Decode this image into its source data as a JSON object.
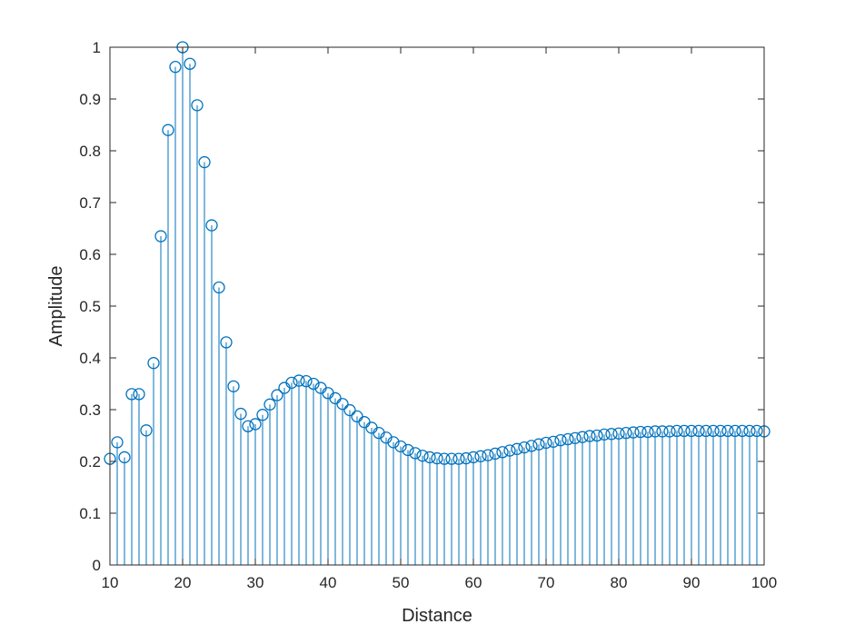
{
  "chart_data": {
    "type": "stem",
    "xlabel": "Distance",
    "ylabel": "Amplitude",
    "xlim": [
      10,
      100
    ],
    "ylim": [
      0,
      1
    ],
    "xticks": [
      "10",
      "20",
      "30",
      "40",
      "50",
      "60",
      "70",
      "80",
      "90",
      "100"
    ],
    "yticks": [
      "0",
      "0.1",
      "0.2",
      "0.3",
      "0.4",
      "0.5",
      "0.6",
      "0.7",
      "0.8",
      "0.9",
      "1"
    ],
    "grid": false,
    "color": "#0072BD",
    "x": [
      10,
      11,
      12,
      13,
      14,
      15,
      16,
      17,
      18,
      19,
      20,
      21,
      22,
      23,
      24,
      25,
      26,
      27,
      28,
      29,
      30,
      31,
      32,
      33,
      34,
      35,
      36,
      37,
      38,
      39,
      40,
      41,
      42,
      43,
      44,
      45,
      46,
      47,
      48,
      49,
      50,
      51,
      52,
      53,
      54,
      55,
      56,
      57,
      58,
      59,
      60,
      61,
      62,
      63,
      64,
      65,
      66,
      67,
      68,
      69,
      70,
      71,
      72,
      73,
      74,
      75,
      76,
      77,
      78,
      79,
      80,
      81,
      82,
      83,
      84,
      85,
      86,
      87,
      88,
      89,
      90,
      91,
      92,
      93,
      94,
      95,
      96,
      97,
      98,
      99,
      100
    ],
    "y": [
      0.205,
      0.237,
      0.208,
      0.33,
      0.33,
      0.26,
      0.39,
      0.635,
      0.84,
      0.962,
      1.0,
      0.968,
      0.888,
      0.778,
      0.656,
      0.536,
      0.43,
      0.345,
      0.292,
      0.268,
      0.272,
      0.29,
      0.31,
      0.328,
      0.342,
      0.352,
      0.356,
      0.355,
      0.35,
      0.342,
      0.332,
      0.322,
      0.311,
      0.299,
      0.287,
      0.276,
      0.265,
      0.255,
      0.246,
      0.237,
      0.229,
      0.222,
      0.216,
      0.211,
      0.208,
      0.206,
      0.205,
      0.205,
      0.205,
      0.206,
      0.208,
      0.21,
      0.212,
      0.215,
      0.218,
      0.221,
      0.224,
      0.227,
      0.23,
      0.233,
      0.236,
      0.238,
      0.241,
      0.243,
      0.245,
      0.247,
      0.249,
      0.25,
      0.252,
      0.253,
      0.254,
      0.255,
      0.256,
      0.257,
      0.257,
      0.258,
      0.258,
      0.258,
      0.259,
      0.259,
      0.259,
      0.259,
      0.259,
      0.259,
      0.259,
      0.259,
      0.259,
      0.259,
      0.259,
      0.259,
      0.258
    ]
  }
}
